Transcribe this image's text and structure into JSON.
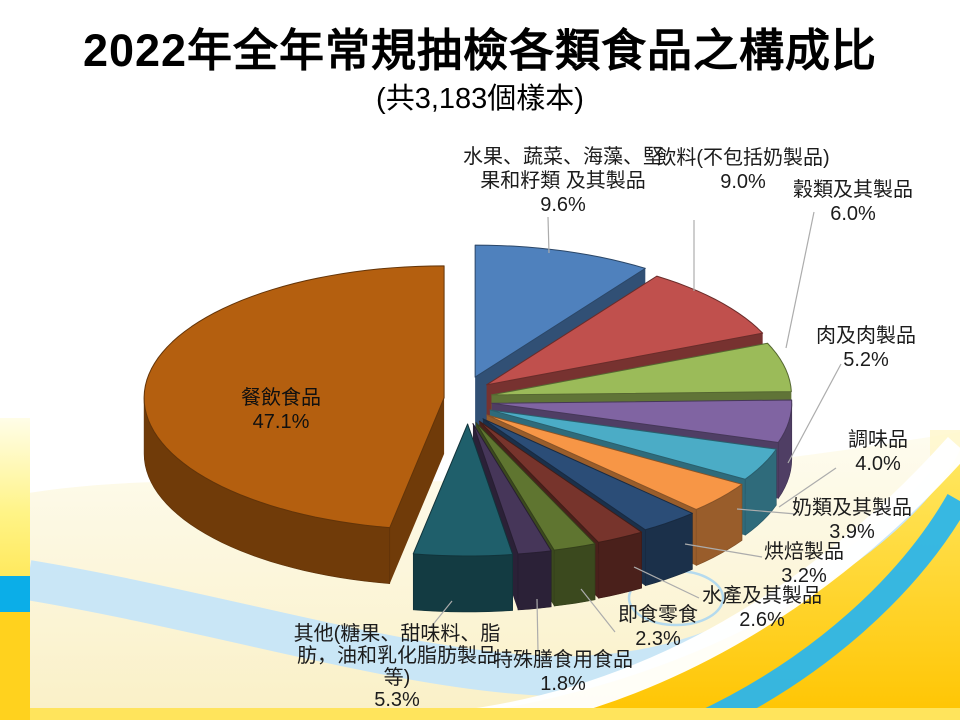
{
  "slide": {
    "title": "2022年全年常規抽檢各類食品之構成比",
    "subtitle": "(共3,183個樣本)"
  },
  "chart_data": {
    "type": "pie",
    "style": "3d-exploded-pie",
    "title": "2022年全年常規抽檢各類食品之構成比",
    "subtitle": "(共3,183個樣本)",
    "total_samples": 3183,
    "unit": "%",
    "direction": "clockwise",
    "start_angle_deg": 0,
    "legend_position": "none",
    "slices": [
      {
        "label": "水果、蔬菜、海藻、堅果和籽類 及其製品",
        "value": 9.6,
        "color": "#4F81BD"
      },
      {
        "label": "飲料(不包括奶製品)",
        "value": 9.0,
        "color": "#C0504D"
      },
      {
        "label": "穀類及其製品",
        "value": 6.0,
        "color": "#9BBB59"
      },
      {
        "label": "肉及肉製品",
        "value": 5.2,
        "color": "#8064A2"
      },
      {
        "label": "調味品",
        "value": 4.0,
        "color": "#4BACC6"
      },
      {
        "label": "奶類及其製品",
        "value": 3.9,
        "color": "#F79646"
      },
      {
        "label": "烘焙製品",
        "value": 3.2,
        "color": "#2B4D77"
      },
      {
        "label": "水產及其製品",
        "value": 2.6,
        "color": "#77342C"
      },
      {
        "label": "即食零食",
        "value": 2.3,
        "color": "#5F7530"
      },
      {
        "label": "特殊膳食用食品",
        "value": 1.8,
        "color": "#463659"
      },
      {
        "label": "其他(糖果、甜味料、脂肪，油和乳化脂肪製品等)",
        "value": 5.3,
        "color": "#1F5F6B"
      },
      {
        "label": "餐飲食品",
        "value": 47.1,
        "color": "#B45F0F"
      }
    ],
    "accent_colors": {
      "template_gold": "#FFD21E",
      "template_cyan": "#2CB5EA",
      "template_pale_blue": "#C6E5F8",
      "template_cream": "#FAF1C9"
    }
  }
}
